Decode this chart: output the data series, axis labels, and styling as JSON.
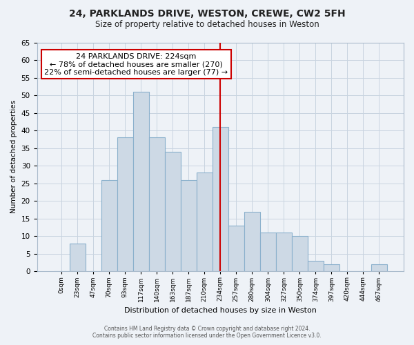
{
  "title": "24, PARKLANDS DRIVE, WESTON, CREWE, CW2 5FH",
  "subtitle": "Size of property relative to detached houses in Weston",
  "xlabel": "Distribution of detached houses by size in Weston",
  "ylabel": "Number of detached properties",
  "bar_labels": [
    "0sqm",
    "23sqm",
    "47sqm",
    "70sqm",
    "93sqm",
    "117sqm",
    "140sqm",
    "163sqm",
    "187sqm",
    "210sqm",
    "234sqm",
    "257sqm",
    "280sqm",
    "304sqm",
    "327sqm",
    "350sqm",
    "374sqm",
    "397sqm",
    "420sqm",
    "444sqm",
    "467sqm"
  ],
  "bar_values": [
    0,
    8,
    0,
    26,
    38,
    51,
    38,
    34,
    26,
    28,
    41,
    13,
    17,
    11,
    11,
    10,
    3,
    2,
    0,
    0,
    2
  ],
  "bar_color": "#cdd9e5",
  "bar_edge_color": "#8ab0cc",
  "highlight_index": 10,
  "highlight_line_color": "#cc0000",
  "ylim": [
    0,
    65
  ],
  "yticks": [
    0,
    5,
    10,
    15,
    20,
    25,
    30,
    35,
    40,
    45,
    50,
    55,
    60,
    65
  ],
  "annotation_title": "24 PARKLANDS DRIVE: 224sqm",
  "annotation_line1": "← 78% of detached houses are smaller (270)",
  "annotation_line2": "22% of semi-detached houses are larger (77) →",
  "annotation_box_facecolor": "#ffffff",
  "annotation_box_edgecolor": "#cc0000",
  "footer_line1": "Contains HM Land Registry data © Crown copyright and database right 2024.",
  "footer_line2": "Contains public sector information licensed under the Open Government Licence v3.0.",
  "bg_color": "#eef2f7",
  "plot_bg_color": "#eef2f7",
  "grid_color": "#c8d4e0",
  "spine_color": "#aabbcc"
}
